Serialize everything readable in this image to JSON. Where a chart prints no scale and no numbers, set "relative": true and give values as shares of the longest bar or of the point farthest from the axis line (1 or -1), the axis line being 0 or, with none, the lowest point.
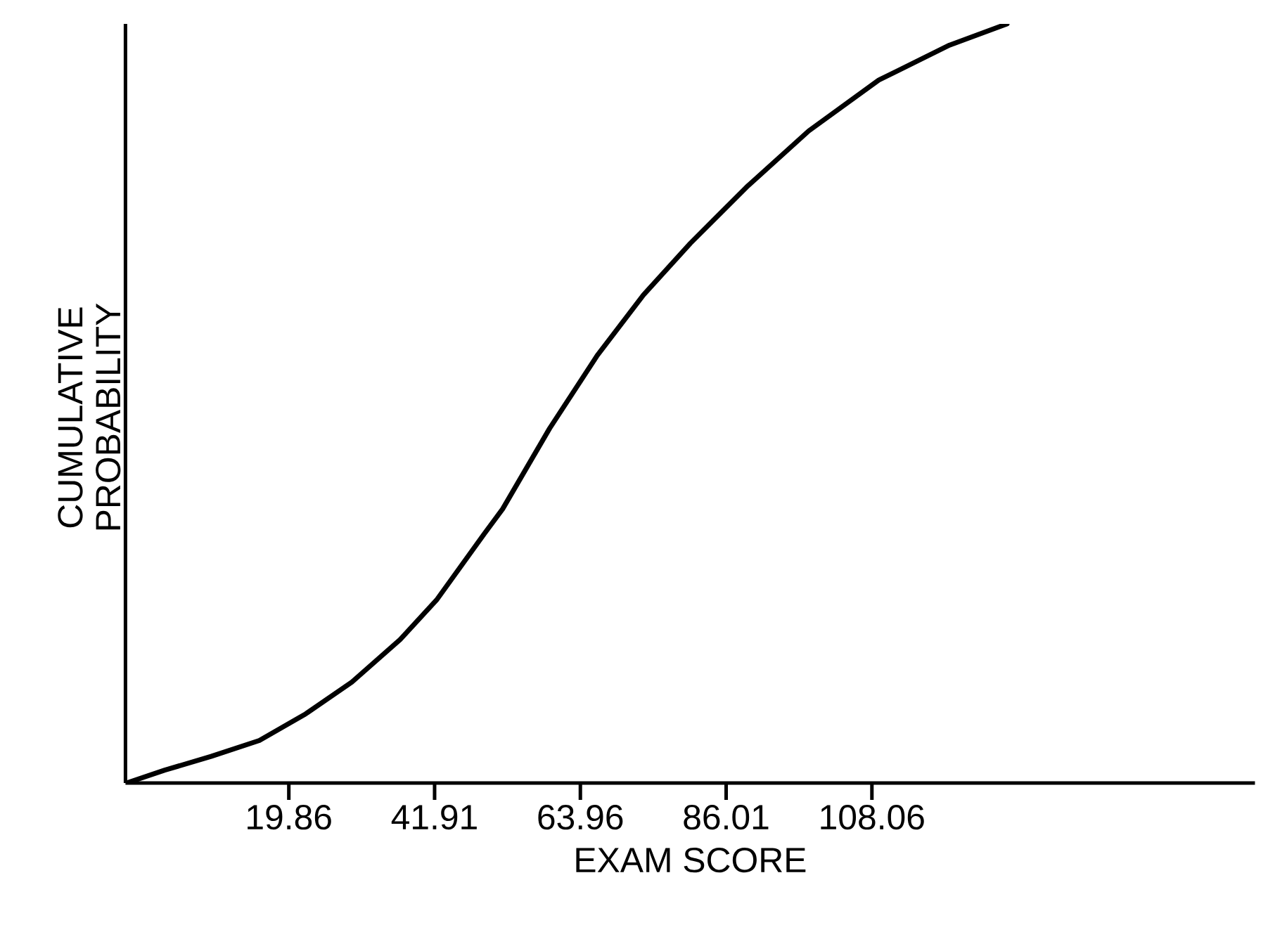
{
  "chart_data": {
    "type": "line",
    "xlabel": "EXAM SCORE",
    "ylabel": "CUMULATIVE PROBABILITY",
    "relative": true,
    "xlim": [
      -4.85,
      166
    ],
    "xticks": [
      19.86,
      41.91,
      63.96,
      86.01,
      108.06
    ],
    "x": [
      -4.7,
      1.1,
      8.1,
      15.4,
      22.4,
      29.4,
      36.7,
      42.2,
      49.4,
      52.2,
      59.3,
      66.5,
      73.5,
      80.6,
      89.1,
      98.5,
      109.1,
      119.8,
      128.5
    ],
    "series": [
      {
        "color": "#000000",
        "values": [
          0,
          0.017,
          0.035,
          0.056,
          0.091,
          0.133,
          0.189,
          0.241,
          0.328,
          0.361,
          0.467,
          0.563,
          0.643,
          0.711,
          0.785,
          0.859,
          0.926,
          0.972,
          1.0
        ]
      }
    ],
    "grid": false,
    "marker": "none",
    "line_style": "solid"
  }
}
